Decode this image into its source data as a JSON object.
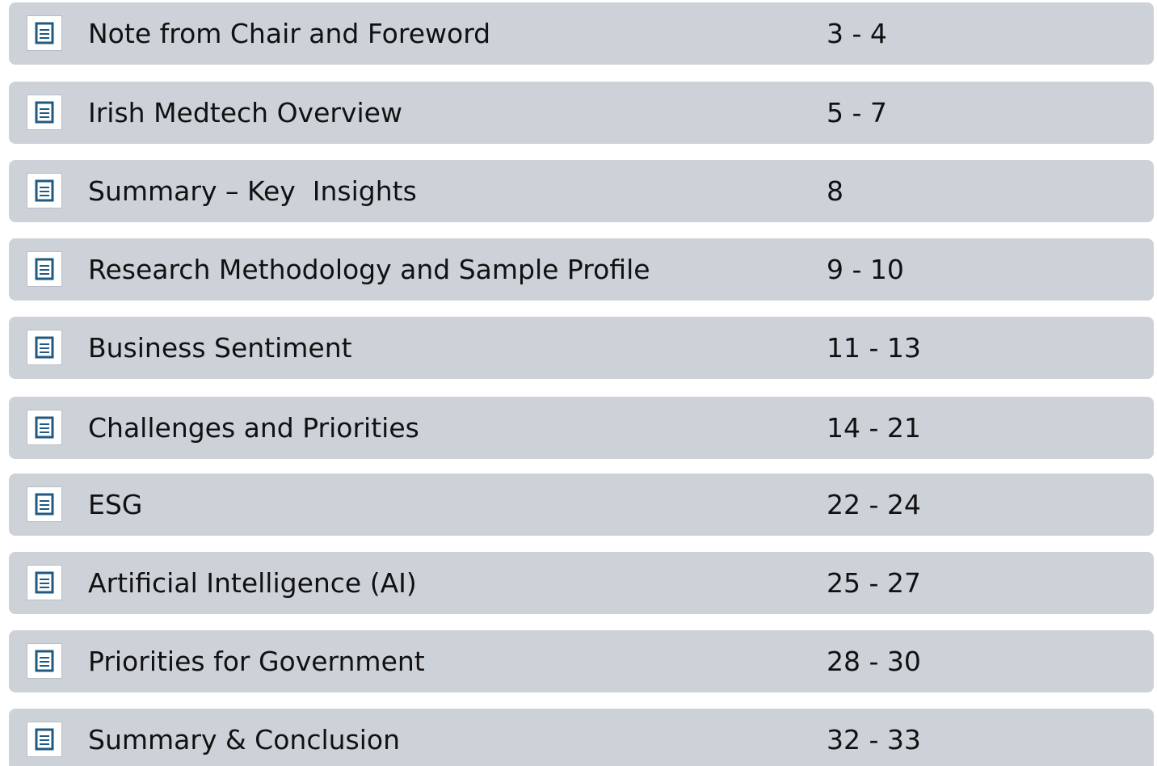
{
  "toc": {
    "items": [
      {
        "title": "Note from Chair and Foreword",
        "pages": "3 - 4"
      },
      {
        "title": "Irish Medtech Overview",
        "pages": "5 - 7"
      },
      {
        "title": "Summary – Key  Insights",
        "pages": "8"
      },
      {
        "title": "Research Methodology and Sample Profile",
        "pages": "9 - 10"
      },
      {
        "title": "Business Sentiment",
        "pages": "11 - 13"
      },
      {
        "title": "Challenges and Priorities",
        "pages": "14 - 21"
      },
      {
        "title": "ESG",
        "pages": "22 - 24"
      },
      {
        "title": "Artificial Intelligence (AI)",
        "pages": "25 - 27"
      },
      {
        "title": "Priorities for Government",
        "pages": "28 - 30"
      },
      {
        "title": "Summary & Conclusion",
        "pages": "32 - 33"
      }
    ]
  }
}
